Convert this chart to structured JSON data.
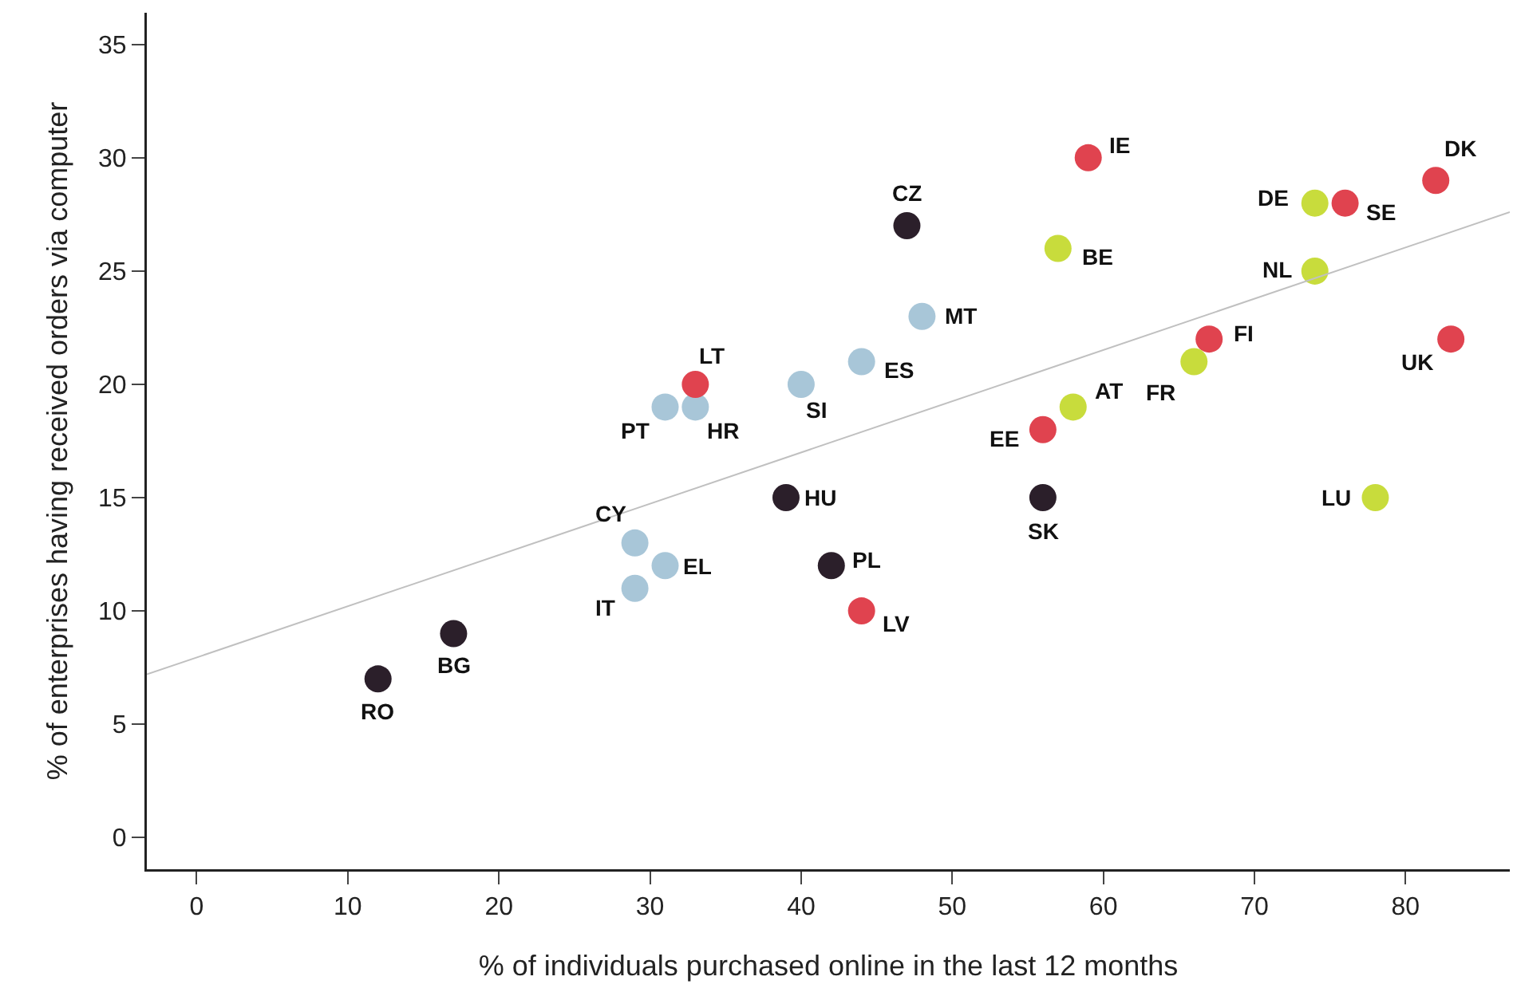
{
  "chart_data": {
    "type": "scatter",
    "xlabel": "% of individuals purchased online in the last 12 months",
    "ylabel": "% of enterprises having received orders via computer",
    "xlim": [
      -3.3,
      86.9
    ],
    "xticks": [
      0,
      10,
      20,
      30,
      40,
      50,
      60,
      70,
      80
    ],
    "ylim": [
      -1.4,
      36.4
    ],
    "yticks": [
      0,
      5,
      10,
      15,
      20,
      25,
      30,
      35
    ],
    "marker": "circle",
    "series": [
      {
        "color": "#2b1f2a",
        "x": [
          12,
          17,
          39,
          42,
          47,
          56
        ],
        "values": [
          7,
          9,
          15,
          12,
          27,
          15
        ]
      },
      {
        "color": "#a8c6d8",
        "x": [
          29,
          31,
          29,
          31,
          33,
          40,
          44,
          48
        ],
        "values": [
          13,
          12,
          11,
          19,
          19,
          20,
          21,
          23
        ]
      },
      {
        "color": "#e0434f",
        "x": [
          33,
          44,
          56,
          59,
          67,
          82,
          76,
          83
        ],
        "values": [
          20,
          10,
          18,
          30,
          22,
          29,
          28,
          22
        ]
      },
      {
        "color": "#c8dc3c",
        "x": [
          57,
          58,
          66,
          74,
          74,
          78
        ],
        "values": [
          26,
          19,
          21,
          25,
          28,
          15
        ]
      },
      {
        "type": "line",
        "color": "#c0c0c0",
        "x": [
          -3.3,
          86.9
        ],
        "values": [
          7.2,
          27.6
        ],
        "marker": "none"
      }
    ],
    "annotations": [
      {
        "text": "RO",
        "x": 12,
        "y": 7
      },
      {
        "text": "BG",
        "x": 17,
        "y": 9
      },
      {
        "text": "HU",
        "x": 39,
        "y": 15
      },
      {
        "text": "PL",
        "x": 42,
        "y": 12
      },
      {
        "text": "CZ",
        "x": 47,
        "y": 27
      },
      {
        "text": "SK",
        "x": 56,
        "y": 15
      },
      {
        "text": "CY",
        "x": 29,
        "y": 13
      },
      {
        "text": "EL",
        "x": 31,
        "y": 12
      },
      {
        "text": "IT",
        "x": 29,
        "y": 11
      },
      {
        "text": "PT",
        "x": 31,
        "y": 19
      },
      {
        "text": "HR",
        "x": 33,
        "y": 19
      },
      {
        "text": "SI",
        "x": 40,
        "y": 20
      },
      {
        "text": "ES",
        "x": 44,
        "y": 21
      },
      {
        "text": "MT",
        "x": 48,
        "y": 23
      },
      {
        "text": "LT",
        "x": 33,
        "y": 20
      },
      {
        "text": "LV",
        "x": 44,
        "y": 10
      },
      {
        "text": "EE",
        "x": 56,
        "y": 18
      },
      {
        "text": "IE",
        "x": 59,
        "y": 30
      },
      {
        "text": "FI",
        "x": 67,
        "y": 22
      },
      {
        "text": "DK",
        "x": 82,
        "y": 29
      },
      {
        "text": "SE",
        "x": 76,
        "y": 28
      },
      {
        "text": "UK",
        "x": 83,
        "y": 22
      },
      {
        "text": "BE",
        "x": 57,
        "y": 26
      },
      {
        "text": "AT",
        "x": 58,
        "y": 19
      },
      {
        "text": "FR",
        "x": 66,
        "y": 21
      },
      {
        "text": "NL",
        "x": 74,
        "y": 25
      },
      {
        "text": "DE",
        "x": 74,
        "y": 28
      },
      {
        "text": "LU",
        "x": 78,
        "y": 15
      }
    ]
  }
}
